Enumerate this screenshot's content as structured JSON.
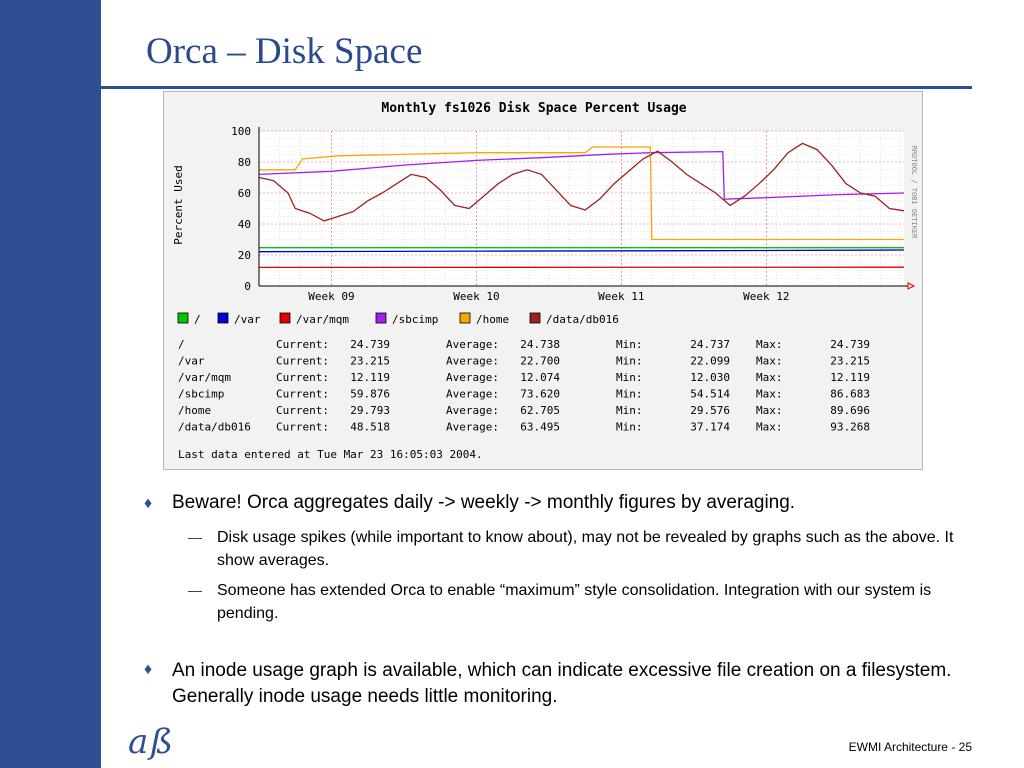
{
  "slide": {
    "title": "Orca – Disk Space",
    "footer": "EWMI Architecture - 25",
    "logo_text": "aß"
  },
  "bullets": [
    {
      "text": "Beware! Orca aggregates daily -> weekly -> monthly figures by averaging."
    },
    {
      "text": "Disk usage spikes (while important to know about), may not be revealed by graphs such as the above. It show averages."
    },
    {
      "text": "Someone has extended Orca to enable “maximum” style consolidation. Integration with our system is pending."
    },
    {
      "text": "An inode usage graph is available, which can indicate excessive file creation on a filesystem. Generally inode usage needs little monitoring."
    }
  ],
  "chart_data": {
    "type": "line",
    "title": "Monthly fs1026 Disk Space Percent Usage",
    "ylabel": "Percent Used",
    "side_label": "RRDTOOL / TOBI OETIKER",
    "ylim": [
      0,
      100
    ],
    "yticks": [
      0,
      20,
      40,
      60,
      80,
      100
    ],
    "xlim": [
      0,
      4.45
    ],
    "x_ticks": [
      {
        "label": "Week 09",
        "x": 0.5
      },
      {
        "label": "Week 10",
        "x": 1.5
      },
      {
        "label": "Week 11",
        "x": 2.5
      },
      {
        "label": "Week 12",
        "x": 3.5
      }
    ],
    "grid": true,
    "legend": [
      "/",
      "/var",
      "/var/mqm",
      "/sbcimp",
      "/home",
      "/data/db016"
    ],
    "stats_labels": {
      "current": "Current:",
      "average": "Average:",
      "min": "Min:",
      "max": "Max:"
    },
    "series": [
      {
        "name": "/",
        "color": "#00c800",
        "current": "24.739",
        "average": "24.738",
        "min": "24.737",
        "max": "24.739",
        "points": [
          [
            0.0,
            24.7
          ],
          [
            4.45,
            24.7
          ]
        ]
      },
      {
        "name": "/var",
        "color": "#0000d8",
        "current": "23.215",
        "average": "22.700",
        "min": "22.099",
        "max": "23.215",
        "points": [
          [
            0.0,
            22.1
          ],
          [
            1.5,
            22.5
          ],
          [
            3.0,
            22.8
          ],
          [
            4.45,
            23.2
          ]
        ]
      },
      {
        "name": "/var/mqm",
        "color": "#e00000",
        "current": "12.119",
        "average": "12.074",
        "min": "12.030",
        "max": "12.119",
        "points": [
          [
            0.0,
            12.0
          ],
          [
            4.45,
            12.1
          ]
        ]
      },
      {
        "name": "/sbcimp",
        "color": "#a020f0",
        "current": "59.876",
        "average": "73.620",
        "min": "54.514",
        "max": "86.683",
        "points": [
          [
            0.0,
            72
          ],
          [
            0.5,
            74
          ],
          [
            1.0,
            78
          ],
          [
            1.5,
            81
          ],
          [
            2.0,
            83
          ],
          [
            2.4,
            85
          ],
          [
            2.7,
            86
          ],
          [
            3.2,
            86.7
          ],
          [
            3.21,
            56
          ],
          [
            3.5,
            57
          ],
          [
            4.0,
            59
          ],
          [
            4.45,
            60
          ]
        ]
      },
      {
        "name": "/home",
        "color": "#ffa500",
        "current": "29.793",
        "average": "62.705",
        "min": "29.576",
        "max": "89.696",
        "points": [
          [
            0.0,
            75
          ],
          [
            0.25,
            75
          ],
          [
            0.3,
            82
          ],
          [
            0.55,
            84
          ],
          [
            1.5,
            86
          ],
          [
            2.25,
            86
          ],
          [
            2.3,
            89.7
          ],
          [
            2.7,
            89.7
          ],
          [
            2.71,
            30
          ],
          [
            3.5,
            30
          ],
          [
            4.45,
            30
          ]
        ]
      },
      {
        "name": "/data/db016",
        "color": "#a02020",
        "current": "48.518",
        "average": "63.495",
        "min": "37.174",
        "max": "93.268",
        "points": [
          [
            0.0,
            70
          ],
          [
            0.1,
            68
          ],
          [
            0.2,
            60
          ],
          [
            0.25,
            50
          ],
          [
            0.35,
            47
          ],
          [
            0.45,
            42
          ],
          [
            0.55,
            45
          ],
          [
            0.65,
            48
          ],
          [
            0.75,
            55
          ],
          [
            0.85,
            60
          ],
          [
            0.95,
            66
          ],
          [
            1.05,
            72
          ],
          [
            1.15,
            70
          ],
          [
            1.25,
            62
          ],
          [
            1.35,
            52
          ],
          [
            1.45,
            50
          ],
          [
            1.55,
            58
          ],
          [
            1.65,
            66
          ],
          [
            1.75,
            72
          ],
          [
            1.85,
            75
          ],
          [
            1.95,
            72
          ],
          [
            2.05,
            62
          ],
          [
            2.15,
            52
          ],
          [
            2.25,
            49
          ],
          [
            2.35,
            56
          ],
          [
            2.45,
            66
          ],
          [
            2.55,
            74
          ],
          [
            2.65,
            82
          ],
          [
            2.75,
            87
          ],
          [
            2.85,
            80
          ],
          [
            2.95,
            72
          ],
          [
            3.05,
            66
          ],
          [
            3.15,
            60
          ],
          [
            3.25,
            52
          ],
          [
            3.35,
            58
          ],
          [
            3.45,
            66
          ],
          [
            3.55,
            75
          ],
          [
            3.65,
            86
          ],
          [
            3.75,
            92
          ],
          [
            3.85,
            88
          ],
          [
            3.95,
            78
          ],
          [
            4.05,
            66
          ],
          [
            4.15,
            60
          ],
          [
            4.25,
            58
          ],
          [
            4.35,
            50
          ],
          [
            4.45,
            48.5
          ]
        ]
      }
    ],
    "footnote": "Last data entered at Tue Mar 23 16:05:03 2004."
  }
}
